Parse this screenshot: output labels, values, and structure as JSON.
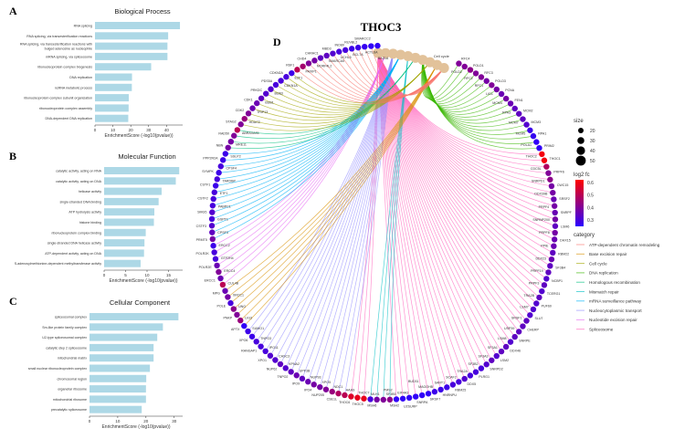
{
  "panels": {
    "a": "A",
    "b": "B",
    "c": "C",
    "d": "D"
  },
  "chart_data": [
    {
      "type": "bar",
      "orientation": "horizontal",
      "panel": "A",
      "title": "Biological Process",
      "xlabel": "EnrichmentScore (-log10(pvalue))",
      "xticks": [
        0,
        10,
        20,
        30,
        40
      ],
      "xlim": [
        0,
        49
      ],
      "color": "#ADD8E6",
      "categories": [
        "RNA splicing",
        "RNA splicing, via transesterification reactions",
        "RNA splicing, via transesterification reactions with bulged adenosine as nucleophile",
        "mRNA splicing, via spliceosome",
        "ribonucleoprotein complex biogenesis",
        "DNA replication",
        "ncRNA metabolic process",
        "ribonucleoprotein complex subunit organization",
        "ribonucleoprotein complex assembly",
        "DNA-dependent DNA replication"
      ],
      "values": [
        47.5,
        40.9,
        40.5,
        40.5,
        31.4,
        20.7,
        20.6,
        18.9,
        18.8,
        18.6
      ]
    },
    {
      "type": "bar",
      "orientation": "horizontal",
      "panel": "B",
      "title": "Molecular Function",
      "xlabel": "EnrichmentScore (-log10(pvalue))",
      "xticks": [
        0,
        5,
        10,
        15
      ],
      "xlim": [
        0,
        18.3
      ],
      "color": "#ADD8E6",
      "categories": [
        "catalytic activity, acting on RNA",
        "catalytic activity, acting on DNA",
        "helicase activity",
        "single-stranded DNA binding",
        "ATP hydrolysis activity",
        "histone binding",
        "ribonucleoprotein complex binding",
        "single-stranded DNA helicase activity",
        "ATP-dependent activity, acting on DNA",
        "S-adenosylmethionine-dependent methyltransferase activity"
      ],
      "values": [
        17.5,
        16.7,
        13.4,
        12.7,
        11.7,
        11.6,
        9.7,
        9.4,
        9.3,
        8.5
      ]
    },
    {
      "type": "bar",
      "orientation": "horizontal",
      "panel": "C",
      "title": "Cellular Component",
      "xlabel": "EnrichmentScore (-log10(pvalue))",
      "xticks": [
        0,
        10,
        20,
        30
      ],
      "xlim": [
        0,
        33
      ],
      "color": "#ADD8E6",
      "categories": [
        "spliceosomal complex",
        "Sm-like protein family complex",
        "U2-type spliceosomal complex",
        "catalytic step 2 spliceosome",
        "mitochondrial matrix",
        "small nuclear ribonucleoprotein complex",
        "chromosomal region",
        "organellar ribosome",
        "mitochondrial ribosome",
        "precatalytic spliceosome"
      ],
      "values": [
        31.5,
        26.0,
        24.0,
        22.7,
        22.7,
        21.4,
        20.1,
        20.0,
        20.0,
        18.5
      ]
    },
    {
      "type": "network",
      "panel": "D",
      "title": "THOC3",
      "size_legend": {
        "title": "size",
        "values": [
          20,
          30,
          40,
          50
        ]
      },
      "color_legend": {
        "title": "log2 fc",
        "ticks": [
          0.6,
          0.5,
          0.4,
          0.3
        ],
        "low": "#2B00FF",
        "high": "#FF0000",
        "range": [
          0.25,
          0.62
        ]
      },
      "category_legend_title": "category",
      "category_node_color": "#E2C29A",
      "categories": [
        {
          "name": "ATP-dependent chromatin remodeling",
          "color": "#F8766D"
        },
        {
          "name": "Base excision repair",
          "color": "#D89000"
        },
        {
          "name": "Cell cycle",
          "color": "#A3A500"
        },
        {
          "name": "DNA replication",
          "color": "#39B600"
        },
        {
          "name": "Homologous recombination",
          "color": "#00BF7D"
        },
        {
          "name": "Mismatch repair",
          "color": "#00BFC4"
        },
        {
          "name": "mRNA surveillance pathway",
          "color": "#00B0F6"
        },
        {
          "name": "Nucleocytoplasmic transport",
          "color": "#9590FF"
        },
        {
          "name": "Nucleotide excision repair",
          "color": "#E76BF3"
        },
        {
          "name": "Spliceosome",
          "color": "#FF62BC"
        }
      ],
      "genes": [
        [
          "RFC4",
          0.4,
          3
        ],
        [
          "POLD2",
          0.4,
          3
        ],
        [
          "POLD1",
          0.42,
          3
        ],
        [
          "RFC2",
          0.4,
          3
        ],
        [
          "RFC3",
          0.4,
          3
        ],
        [
          "RFC1",
          0.38,
          3
        ],
        [
          "POLD3",
          0.4,
          3
        ],
        [
          "LIG1",
          0.38,
          3
        ],
        [
          "PCNA",
          0.36,
          3
        ],
        [
          "MCM4",
          0.38,
          3
        ],
        [
          "FEN1",
          0.36,
          3
        ],
        [
          "RPA3",
          0.34,
          3
        ],
        [
          "MCM2",
          0.34,
          3
        ],
        [
          "MCM7",
          0.34,
          3
        ],
        [
          "MCM3",
          0.32,
          3
        ],
        [
          "MCM5",
          0.28,
          3
        ],
        [
          "RPA1",
          0.27,
          3
        ],
        [
          "POLA1",
          0.26,
          3
        ],
        [
          "PRIM2",
          0.26,
          3
        ],
        [
          "THOC2",
          0.6,
          9
        ],
        [
          "THOC1",
          0.6,
          9
        ],
        [
          "CDC5L",
          0.48,
          9
        ],
        [
          "PRPF6",
          0.4,
          9
        ],
        [
          "SNRPD1",
          0.42,
          9
        ],
        [
          "CWC15",
          0.38,
          9
        ],
        [
          "DDX39B",
          0.38,
          9
        ],
        [
          "SRSF2",
          0.36,
          9
        ],
        [
          "PRPF4",
          0.38,
          9
        ],
        [
          "SNRPF",
          0.36,
          9
        ],
        [
          "SNRNP200",
          0.38,
          9
        ],
        [
          "LSM6",
          0.34,
          9
        ],
        [
          "PRPF8",
          0.38,
          9
        ],
        [
          "DHX15",
          0.36,
          9
        ],
        [
          "PPIE",
          0.36,
          9
        ],
        [
          "RBM22",
          0.34,
          9
        ],
        [
          "DDX23",
          0.36,
          9
        ],
        [
          "SF3B4",
          0.34,
          9
        ],
        [
          "PRPF19",
          0.34,
          9
        ],
        [
          "NCBP1",
          0.32,
          9
        ],
        [
          "PRPF3",
          0.34,
          9
        ],
        [
          "TCERG1",
          0.32,
          9
        ],
        [
          "TRA2B",
          0.34,
          9
        ],
        [
          "PUF60",
          0.32,
          9
        ],
        [
          "LSM7",
          0.32,
          9
        ],
        [
          "SLU7",
          0.32,
          9
        ],
        [
          "SRSF1",
          0.34,
          9
        ],
        [
          "CHERP",
          0.34,
          9
        ],
        [
          "USP39",
          0.34,
          9
        ],
        [
          "SNRPE",
          0.34,
          9
        ],
        [
          "LSM8",
          0.32,
          9
        ],
        [
          "DDX46",
          0.34,
          9
        ],
        [
          "SF3A1",
          0.34,
          9
        ],
        [
          "LSM2",
          0.32,
          9
        ],
        [
          "SF3A3",
          0.34,
          9
        ],
        [
          "SNRPD2",
          0.32,
          9
        ],
        [
          "SF3B2",
          0.3,
          9
        ],
        [
          "PLRG1",
          0.3,
          9
        ],
        [
          "TRA2A",
          0.3,
          9
        ],
        [
          "DDX5",
          0.32,
          9
        ],
        [
          "SCAF2",
          0.3,
          9
        ],
        [
          "RBM25",
          0.3,
          9
        ],
        [
          "SART1",
          0.28,
          9
        ],
        [
          "HNRNPU",
          0.28,
          9
        ],
        [
          "MAGOHB",
          0.28,
          9
        ],
        [
          "SRSF7",
          0.26,
          9
        ],
        [
          "BUD31",
          0.26,
          9
        ],
        [
          "SNRPA",
          0.26,
          9
        ],
        [
          "EIF4A3",
          0.26,
          9
        ],
        [
          "U2SURP",
          0.26,
          9
        ],
        [
          "SF3B5",
          0.26,
          9
        ],
        [
          "MSH2",
          0.42,
          5
        ],
        [
          "PMS2",
          0.4,
          5
        ],
        [
          "MSH6",
          0.38,
          5
        ],
        [
          "MLH1",
          0.3,
          5
        ],
        [
          "THOC5",
          0.58,
          9
        ],
        [
          "THOC7",
          0.58,
          9
        ],
        [
          "THOC6",
          0.56,
          9
        ],
        [
          "AAAS",
          0.5,
          7
        ],
        [
          "CSE1L",
          0.48,
          7
        ],
        [
          "NDC1",
          0.44,
          7
        ],
        [
          "NUP205",
          0.4,
          7
        ],
        [
          "XPO5",
          0.38,
          7
        ],
        [
          "IPO4",
          0.38,
          7
        ],
        [
          "NUP93",
          0.36,
          7
        ],
        [
          "IPO9",
          0.34,
          7
        ],
        [
          "UPF3B",
          0.36,
          7
        ],
        [
          "TNPO2",
          0.34,
          7
        ],
        [
          "KPNA2",
          0.32,
          7
        ],
        [
          "NUP62",
          0.34,
          7
        ],
        [
          "CASC3",
          0.32,
          7
        ],
        [
          "XPO1",
          0.32,
          7
        ],
        [
          "IPO11",
          0.3,
          7
        ],
        [
          "RANGAP1",
          0.3,
          7
        ],
        [
          "TNPO3",
          0.3,
          7
        ],
        [
          "XPO6",
          0.28,
          7
        ],
        [
          "SUMO1",
          0.28,
          7
        ],
        [
          "APTX",
          0.26,
          1
        ],
        [
          "LIG3",
          0.44,
          1
        ],
        [
          "PNKP",
          0.4,
          1
        ],
        [
          "UNG",
          0.42,
          1
        ],
        [
          "POLE",
          0.3,
          1
        ],
        [
          "XRCC1",
          0.38,
          1
        ],
        [
          "MPG",
          0.36,
          1
        ],
        [
          "CUL4B",
          0.5,
          8
        ],
        [
          "ERCC1",
          0.36,
          8
        ],
        [
          "ERCC4",
          0.4,
          8
        ],
        [
          "POLR2E",
          0.36,
          8
        ],
        [
          "GTF2H4",
          0.3,
          8
        ],
        [
          "POLR2K",
          0.3,
          8
        ],
        [
          "ERCC2",
          0.28,
          8
        ],
        [
          "PRMT5",
          0.38,
          6
        ],
        [
          "CPSF3",
          0.34,
          6
        ],
        [
          "CSTF3",
          0.32,
          6
        ],
        [
          "GSPT1",
          0.3,
          6
        ],
        [
          "SMG5",
          0.32,
          6
        ],
        [
          "PABPC1",
          0.3,
          6
        ],
        [
          "CSTF2",
          0.3,
          6
        ],
        [
          "ETF1",
          0.3,
          6
        ],
        [
          "CSTF1",
          0.28,
          6
        ],
        [
          "TARDBP",
          0.3,
          6
        ],
        [
          "SYMPK",
          0.28,
          6
        ],
        [
          "CPSF4",
          0.3,
          6
        ],
        [
          "PPP2R2A",
          0.28,
          6
        ],
        [
          "SSU72",
          0.28,
          6
        ],
        [
          "NBN",
          0.38,
          4
        ],
        [
          "MRE11",
          0.38,
          4
        ],
        [
          "RAD50",
          0.4,
          4
        ],
        [
          "ABRAXAS1",
          0.5,
          4
        ],
        [
          "STAG2",
          0.4,
          2
        ],
        [
          "HDAC2",
          0.44,
          2
        ],
        [
          "CDK2",
          0.4,
          2
        ],
        [
          "TRIP13",
          0.36,
          2
        ],
        [
          "CDK1",
          0.36,
          2
        ],
        [
          "BUB1",
          0.34,
          2
        ],
        [
          "PRKDC",
          0.32,
          2
        ],
        [
          "BUB3",
          0.32,
          2
        ],
        [
          "PDS5A",
          0.3,
          2
        ],
        [
          "CDKN1A",
          0.3,
          2
        ],
        [
          "CDKN2A",
          0.3,
          2
        ],
        [
          "E2F1",
          0.28,
          2
        ],
        [
          "RSF1",
          0.5,
          0
        ],
        [
          "PAXIP1",
          0.46,
          0
        ],
        [
          "CHD4",
          0.4,
          0
        ],
        [
          "MORF4L2",
          0.38,
          0
        ],
        [
          "CHRAC1",
          0.34,
          0
        ],
        [
          "SMARCA5",
          0.34,
          0
        ],
        [
          "MBD3",
          0.32,
          0
        ],
        [
          "UCHL5",
          0.3,
          0
        ],
        [
          "INO80",
          0.3,
          0
        ],
        [
          "BCL7A",
          0.28,
          0
        ],
        [
          "RUVBL2",
          0.28,
          0
        ],
        [
          "ACTL6A",
          0.27,
          0
        ],
        [
          "SMARCC2",
          0.26,
          0
        ],
        [
          "BAZ1A",
          0.26,
          0
        ]
      ]
    }
  ]
}
